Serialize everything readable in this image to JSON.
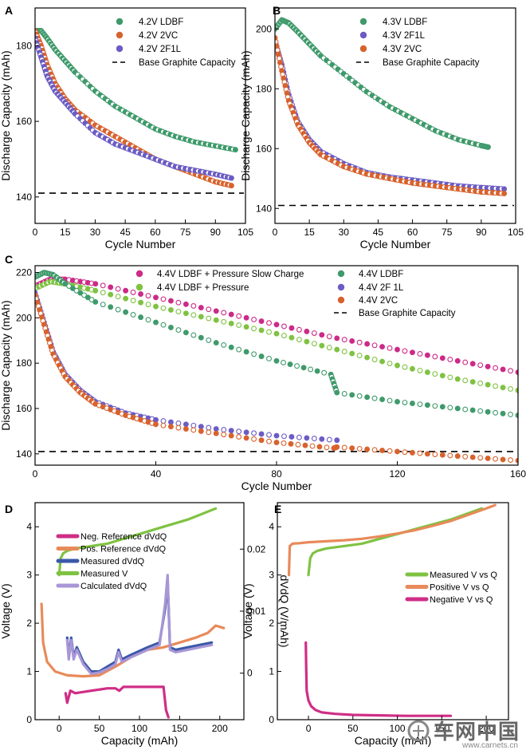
{
  "colors": {
    "green": "#3f9a6b",
    "orange": "#d8622d",
    "purple": "#6b5cc4",
    "magenta": "#cc2a88",
    "lightgreen": "#7fc242",
    "salmon": "#e88a5a",
    "lightpurple": "#a896d6",
    "navy": "#3b58a8",
    "pink": "#cf2e86",
    "dashed": "#000000"
  },
  "watermark": {
    "brand": "车网中国",
    "url": "www.carnets.cn"
  },
  "chart_data": [
    {
      "id": "A",
      "panel_label": "A",
      "type": "scatter",
      "xlabel": "Cycle Number",
      "ylabel": "Discharge Capacity (mAh)",
      "xlim": [
        0,
        105
      ],
      "ylim": [
        133,
        190
      ],
      "xticks": [
        0,
        15,
        30,
        45,
        60,
        75,
        90,
        105
      ],
      "yticks": [
        140,
        160,
        180
      ],
      "legend_position": "top-right",
      "reference_line": {
        "label": "Base Graphite Capacity",
        "y": 141
      },
      "series": [
        {
          "name": "4.2V LDBF",
          "color": "green",
          "x": [
            0,
            3,
            6,
            10,
            15,
            20,
            30,
            40,
            50,
            60,
            70,
            80,
            90,
            100
          ],
          "y": [
            184,
            184,
            182,
            179,
            176,
            173,
            168,
            164,
            161,
            158,
            156,
            154.5,
            153.5,
            152.5
          ]
        },
        {
          "name": "4.2V 2VC",
          "color": "orange",
          "x": [
            0,
            3,
            6,
            10,
            15,
            20,
            30,
            40,
            50,
            60,
            70,
            80,
            90,
            98
          ],
          "y": [
            184,
            180,
            175,
            170,
            166,
            163,
            159,
            156,
            153,
            150,
            148,
            146,
            144,
            143
          ]
        },
        {
          "name": "4.2V 2F1L",
          "color": "purple",
          "x": [
            0,
            3,
            6,
            10,
            15,
            20,
            30,
            40,
            50,
            60,
            70,
            80,
            90,
            98
          ],
          "y": [
            182,
            177,
            172,
            168,
            165,
            162,
            157,
            154,
            152,
            150,
            148,
            147,
            146,
            145
          ]
        }
      ]
    },
    {
      "id": "B",
      "panel_label": "B",
      "type": "scatter",
      "xlabel": "Cycle Number",
      "ylabel": "Discharge Capacity (mAh)",
      "xlim": [
        0,
        105
      ],
      "ylim": [
        135,
        207
      ],
      "xticks": [
        0,
        15,
        30,
        45,
        60,
        75,
        90,
        105
      ],
      "yticks": [
        140,
        160,
        180,
        200
      ],
      "legend_position": "top-right",
      "reference_line": {
        "label": "Base Graphite Capacity",
        "y": 141
      },
      "series": [
        {
          "name": "4.3V LDBF",
          "color": "green",
          "x": [
            0,
            3,
            6,
            10,
            15,
            20,
            30,
            40,
            50,
            60,
            70,
            80,
            90,
            93
          ],
          "y": [
            200,
            203,
            202,
            199,
            195,
            191,
            185,
            179,
            174,
            170,
            166,
            163,
            161,
            160.5
          ]
        },
        {
          "name": "4.3V 2F1L",
          "color": "purple",
          "x": [
            0,
            3,
            6,
            10,
            15,
            20,
            30,
            40,
            50,
            60,
            70,
            80,
            90,
            100
          ],
          "y": [
            196,
            188,
            178,
            169,
            163,
            159,
            155,
            152,
            150.5,
            149.5,
            148.5,
            147.5,
            147,
            146.5
          ]
        },
        {
          "name": "4.3V 2VC",
          "color": "orange",
          "x": [
            0,
            3,
            6,
            10,
            15,
            20,
            30,
            40,
            50,
            60,
            70,
            80,
            90,
            100
          ],
          "y": [
            197,
            186,
            176,
            168,
            162,
            158,
            154,
            151.5,
            150,
            148.5,
            147.5,
            146.5,
            145.5,
            145
          ]
        }
      ]
    },
    {
      "id": "C",
      "panel_label": "C",
      "type": "scatter",
      "xlabel": "Cycle Number",
      "ylabel": "Discharge Capacity (mAh)",
      "xlim": [
        0,
        160
      ],
      "ylim": [
        135,
        223
      ],
      "xticks": [
        0,
        40,
        80,
        120,
        160
      ],
      "yticks": [
        140,
        160,
        180,
        200,
        220
      ],
      "legend_position": "top",
      "reference_line": {
        "label": "Base Graphite Capacity",
        "y": 141
      },
      "series": [
        {
          "name": "4.4V LDBF + Pressure Slow Charge",
          "color": "magenta",
          "x": [
            0,
            5,
            10,
            20,
            40,
            60,
            80,
            100,
            120,
            140,
            160
          ],
          "y": [
            214,
            217,
            217,
            215,
            209,
            203,
            197,
            191,
            186,
            181,
            176
          ]
        },
        {
          "name": "4.4V LDBF + Pressure",
          "color": "lightgreen",
          "x": [
            0,
            5,
            10,
            20,
            40,
            60,
            80,
            100,
            120,
            140,
            160
          ],
          "y": [
            213,
            216,
            215,
            212,
            205,
            199,
            193,
            186,
            179,
            173,
            168
          ]
        },
        {
          "name": "4.4V LDBF",
          "color": "green",
          "x": [
            0,
            3,
            6,
            10,
            20,
            40,
            60,
            80,
            98,
            100,
            120,
            140,
            160
          ],
          "y": [
            218,
            220,
            219,
            215,
            207,
            198,
            189,
            181,
            175,
            167,
            163,
            160,
            157
          ]
        },
        {
          "name": "4.4V 2F 1L",
          "color": "purple",
          "x": [
            0,
            3,
            6,
            10,
            15,
            20,
            30,
            40,
            60,
            80,
            100
          ],
          "y": [
            211,
            198,
            185,
            175,
            168,
            163,
            158,
            155,
            151,
            148,
            146
          ]
        },
        {
          "name": "4.4V 2VC",
          "color": "orange",
          "x": [
            0,
            3,
            6,
            10,
            15,
            20,
            30,
            40,
            60,
            80,
            99,
            100,
            120,
            140,
            160
          ],
          "y": [
            210,
            197,
            184,
            174,
            167,
            162,
            157,
            153,
            149,
            145,
            142.5,
            143,
            141,
            139,
            137
          ]
        }
      ]
    },
    {
      "id": "D",
      "panel_label": "D",
      "type": "line",
      "xlabel": "Capacity (mAh)",
      "ylabel": "Voltage (V)",
      "y2label": "dVdQ (V/mAh)",
      "xlim": [
        -30,
        230
      ],
      "ylim": [
        0,
        4.5
      ],
      "y2lim": [
        -0.0075,
        0.0275
      ],
      "xticks": [
        0,
        50,
        100,
        150,
        200
      ],
      "yticks": [
        0,
        1,
        2,
        3,
        4
      ],
      "y2ticks": [
        0,
        0.01,
        0.02
      ],
      "y2ticklabels": [
        "0",
        "0.01",
        "0.02"
      ],
      "legend_position": "center-left",
      "series": [
        {
          "name": "Neg. Reference dVdQ",
          "color": "pink",
          "axis": "left",
          "x": [
            8,
            10,
            14,
            20,
            40,
            60,
            70,
            75,
            80,
            100,
            120,
            130,
            133,
            136
          ],
          "y": [
            0.55,
            0.35,
            0.6,
            0.55,
            0.6,
            0.65,
            0.65,
            0.6,
            0.68,
            0.68,
            0.68,
            0.68,
            0.2,
            0.05
          ]
        },
        {
          "name": "Pos. Reference dVdQ",
          "color": "salmon",
          "axis": "left",
          "x": [
            -22,
            -20,
            -15,
            -5,
            10,
            30,
            50,
            70,
            90,
            110,
            130,
            150,
            170,
            185,
            195,
            205
          ],
          "y": [
            2.4,
            1.6,
            1.2,
            1.0,
            0.92,
            0.9,
            0.92,
            1.1,
            1.3,
            1.45,
            1.5,
            1.6,
            1.7,
            1.8,
            1.95,
            1.9
          ]
        },
        {
          "name": "Measured dVdQ",
          "color": "navy",
          "axis": "left",
          "x": [
            10,
            12,
            15,
            18,
            22,
            30,
            40,
            50,
            60,
            70,
            74,
            78,
            90,
            110,
            125,
            132,
            135,
            138,
            145,
            160,
            175,
            190
          ],
          "y": [
            1.7,
            1.3,
            1.7,
            1.3,
            1.5,
            1.2,
            1.0,
            1.0,
            1.1,
            1.2,
            1.45,
            1.25,
            1.35,
            1.5,
            1.6,
            2.3,
            2.9,
            1.5,
            1.45,
            1.5,
            1.55,
            1.6
          ]
        },
        {
          "name": "Measured V",
          "color": "lightgreen",
          "axis": "left",
          "x": [
            0,
            2,
            5,
            10,
            20,
            40,
            60,
            80,
            100,
            120,
            140,
            160,
            180,
            195
          ],
          "y": [
            3.0,
            3.35,
            3.45,
            3.5,
            3.55,
            3.6,
            3.65,
            3.75,
            3.85,
            3.95,
            4.05,
            4.15,
            4.28,
            4.38
          ]
        },
        {
          "name": "Calculated dVdQ",
          "color": "lightpurple",
          "axis": "left",
          "x": [
            10,
            12,
            15,
            18,
            22,
            30,
            40,
            50,
            60,
            70,
            74,
            78,
            90,
            110,
            125,
            132,
            135,
            138,
            145,
            160,
            175,
            190
          ],
          "y": [
            1.65,
            1.25,
            1.65,
            1.25,
            1.45,
            1.15,
            0.95,
            0.98,
            1.05,
            1.15,
            1.4,
            1.2,
            1.3,
            1.45,
            1.55,
            2.4,
            3.0,
            1.45,
            1.4,
            1.45,
            1.5,
            1.55
          ]
        }
      ]
    },
    {
      "id": "E",
      "panel_label": "E",
      "type": "line",
      "xlabel": "Capacity (mAh)",
      "ylabel": "Voltage (V)",
      "xlim": [
        -35,
        225
      ],
      "ylim": [
        0,
        4.5
      ],
      "xticks": [
        0,
        50,
        100,
        150,
        200
      ],
      "yticks": [
        0,
        1,
        2,
        3,
        4
      ],
      "legend_position": "center-right",
      "series": [
        {
          "name": "Measured V vs Q",
          "color": "lightgreen",
          "x": [
            0,
            2,
            5,
            10,
            20,
            40,
            60,
            80,
            100,
            120,
            140,
            160,
            180,
            195
          ],
          "y": [
            3.0,
            3.35,
            3.45,
            3.5,
            3.55,
            3.6,
            3.65,
            3.75,
            3.85,
            3.95,
            4.05,
            4.15,
            4.28,
            4.38
          ]
        },
        {
          "name": "Positive V vs Q",
          "color": "salmon",
          "x": [
            -22,
            -21,
            -18,
            -10,
            0,
            20,
            40,
            60,
            80,
            100,
            120,
            140,
            160,
            180,
            200,
            210
          ],
          "y": [
            3.0,
            3.6,
            3.65,
            3.66,
            3.68,
            3.7,
            3.72,
            3.75,
            3.8,
            3.86,
            3.93,
            4.02,
            4.12,
            4.25,
            4.38,
            4.45
          ]
        },
        {
          "name": "Negative V vs Q",
          "color": "pink",
          "x": [
            -3,
            -2.5,
            -2,
            0,
            3,
            8,
            15,
            30,
            50,
            80,
            110,
            140,
            160
          ],
          "y": [
            1.6,
            1.0,
            0.6,
            0.4,
            0.28,
            0.2,
            0.15,
            0.12,
            0.1,
            0.09,
            0.08,
            0.08,
            0.08
          ]
        }
      ]
    }
  ]
}
